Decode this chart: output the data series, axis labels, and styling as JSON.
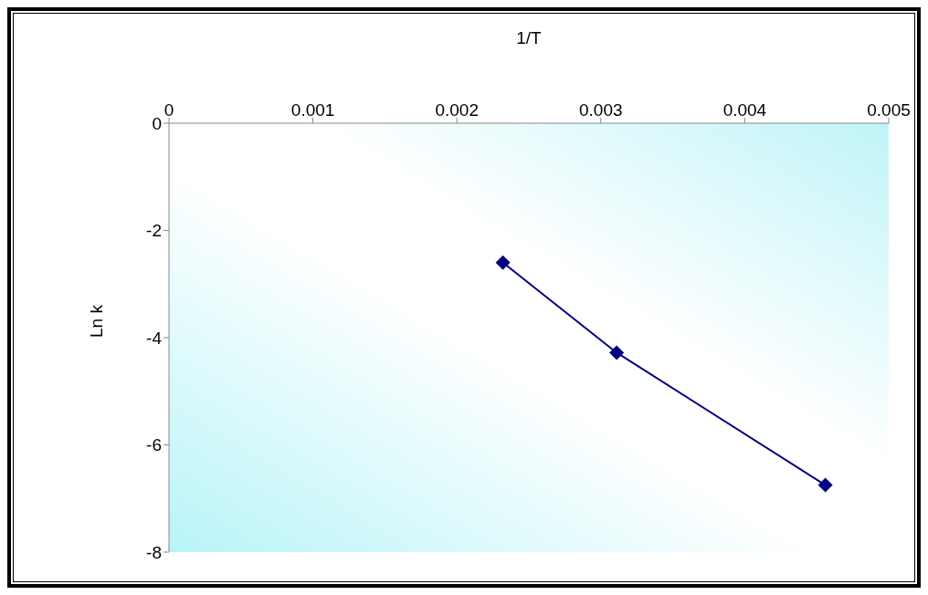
{
  "chart_data": {
    "type": "line",
    "xlabel": "1/T",
    "ylabel": "Ln k",
    "x": [
      0.00232,
      0.00311,
      0.00456
    ],
    "series": [
      {
        "color": "#000080",
        "values": [
          -2.6,
          -4.28,
          -6.75
        ]
      }
    ],
    "xlim": [
      0,
      0.005
    ],
    "xticks": [
      0,
      0.001,
      0.002,
      0.003,
      0.004,
      0.005
    ],
    "ylim": [
      -8,
      0
    ],
    "yticks": [
      -8,
      -6,
      -4,
      -2,
      0
    ],
    "grid": false,
    "legend": false,
    "marker": "diamond",
    "line_style": "solid"
  }
}
